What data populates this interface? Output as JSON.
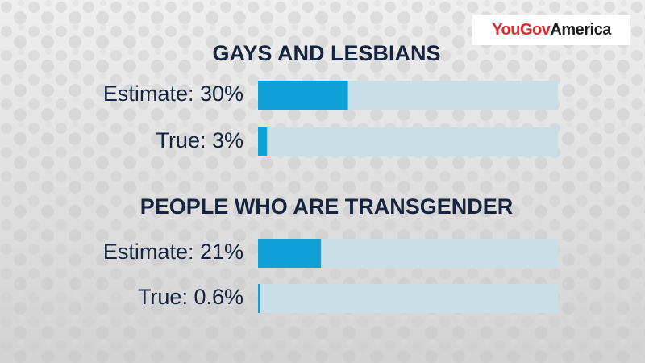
{
  "logo": {
    "brand": "YouGov",
    "region": "America"
  },
  "chart_data": [
    {
      "type": "bar",
      "orientation": "horizontal",
      "title": "GAYS AND LESBIANS",
      "categories": [
        "Estimate: 30%",
        "True: 3%"
      ],
      "values": [
        30,
        3
      ],
      "color": "#0ea0d6",
      "track_color": "#c9dfe8",
      "xlim": [
        0,
        100
      ]
    },
    {
      "type": "bar",
      "orientation": "horizontal",
      "title": "PEOPLE WHO ARE TRANSGENDER",
      "categories": [
        "Estimate: 21%",
        "True: 0.6%"
      ],
      "values": [
        21,
        0.6
      ],
      "color": "#0ea0d6",
      "track_color": "#c9dfe8",
      "xlim": [
        0,
        100
      ]
    }
  ]
}
